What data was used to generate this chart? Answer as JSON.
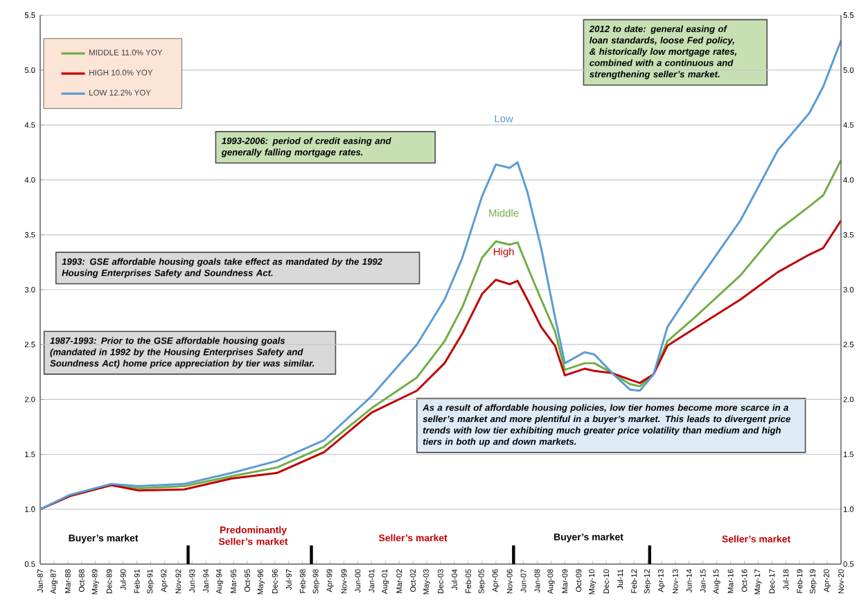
{
  "chart_data": {
    "type": "line",
    "grid": "y",
    "legend": "top left",
    "line_style": "solid",
    "marker": "none",
    "xlim": [
      "1987-01",
      "2020-11"
    ],
    "ylim": [
      0.5,
      5.5
    ],
    "yticks": [
      {
        "value": 0.5,
        "label": "0.5"
      },
      {
        "value": 1,
        "label": "1.0"
      },
      {
        "value": 1.5,
        "label": "1.5"
      },
      {
        "value": 2,
        "label": "2.0"
      },
      {
        "value": 2.5,
        "label": "2.5"
      },
      {
        "value": 3,
        "label": "3.0"
      },
      {
        "value": 3.5,
        "label": "3.5"
      },
      {
        "value": 4,
        "label": "4.0"
      },
      {
        "value": 4.5,
        "label": "4.5"
      },
      {
        "value": 5,
        "label": "5.0"
      },
      {
        "value": 5.5,
        "label": "5.5"
      }
    ],
    "y2lim": [
      0.5,
      5.5
    ],
    "y2ticks": [
      {
        "value": 0.5,
        "label": "0.5"
      },
      {
        "value": 1,
        "label": "1.0"
      },
      {
        "value": 1.5,
        "label": "1.5"
      },
      {
        "value": 2,
        "label": "2.0"
      },
      {
        "value": 2.5,
        "label": "2.5"
      },
      {
        "value": 3,
        "label": "3.0"
      },
      {
        "value": 3.5,
        "label": "3.5"
      },
      {
        "value": 4,
        "label": "4.0"
      },
      {
        "value": 4.5,
        "label": "4.5"
      },
      {
        "value": 5,
        "label": "5.0"
      },
      {
        "value": 5.5,
        "label": "5.5"
      }
    ],
    "xticks": [
      {
        "value": "1987-01",
        "label": "Jan-87"
      },
      {
        "value": "1987-08",
        "label": "Aug-87"
      },
      {
        "value": "1988-03",
        "label": "Mar-88"
      },
      {
        "value": "1988-10",
        "label": "Oct-88"
      },
      {
        "value": "1989-05",
        "label": "May-89"
      },
      {
        "value": "1989-12",
        "label": "Dec-89"
      },
      {
        "value": "1990-07",
        "label": "Jul-90"
      },
      {
        "value": "1991-02",
        "label": "Feb-91"
      },
      {
        "value": "1991-09",
        "label": "Sep-91"
      },
      {
        "value": "1992-04",
        "label": "Apr-92"
      },
      {
        "value": "1992-11",
        "label": "Nov-92"
      },
      {
        "value": "1993-06",
        "label": "Jun-93"
      },
      {
        "value": "1994-01",
        "label": "Jan-94"
      },
      {
        "value": "1994-08",
        "label": "Aug-94"
      },
      {
        "value": "1995-03",
        "label": "Mar-95"
      },
      {
        "value": "1995-10",
        "label": "Oct-95"
      },
      {
        "value": "1996-05",
        "label": "May-96"
      },
      {
        "value": "1996-12",
        "label": "Dec-96"
      },
      {
        "value": "1997-07",
        "label": "Jul-97"
      },
      {
        "value": "1998-02",
        "label": "Feb-98"
      },
      {
        "value": "1998-09",
        "label": "Sep-98"
      },
      {
        "value": "1999-04",
        "label": "Apr-99"
      },
      {
        "value": "1999-11",
        "label": "Nov-99"
      },
      {
        "value": "2000-06",
        "label": "Jun-00"
      },
      {
        "value": "2001-01",
        "label": "Jan-01"
      },
      {
        "value": "2001-08",
        "label": "Aug-01"
      },
      {
        "value": "2002-03",
        "label": "Mar-02"
      },
      {
        "value": "2002-10",
        "label": "Oct-02"
      },
      {
        "value": "2003-05",
        "label": "May-03"
      },
      {
        "value": "2003-12",
        "label": "Dec-03"
      },
      {
        "value": "2004-07",
        "label": "Jul-04"
      },
      {
        "value": "2005-02",
        "label": "Feb-05"
      },
      {
        "value": "2005-09",
        "label": "Sep-05"
      },
      {
        "value": "2006-04",
        "label": "Apr-06"
      },
      {
        "value": "2006-11",
        "label": "Nov-06"
      },
      {
        "value": "2007-06",
        "label": "Jun-07"
      },
      {
        "value": "2008-01",
        "label": "Jan-08"
      },
      {
        "value": "2008-08",
        "label": "Aug-08"
      },
      {
        "value": "2009-03",
        "label": "Mar-09"
      },
      {
        "value": "2009-10",
        "label": "Oct-09"
      },
      {
        "value": "2010-05",
        "label": "May-10"
      },
      {
        "value": "2010-12",
        "label": "Dec-10"
      },
      {
        "value": "2011-07",
        "label": "Jul-11"
      },
      {
        "value": "2012-02",
        "label": "Feb-12"
      },
      {
        "value": "2012-09",
        "label": "Sep-12"
      },
      {
        "value": "2013-04",
        "label": "Apr-13"
      },
      {
        "value": "2013-11",
        "label": "Nov-13"
      },
      {
        "value": "2014-06",
        "label": "Jun-14"
      },
      {
        "value": "2015-01",
        "label": "Jan-15"
      },
      {
        "value": "2015-08",
        "label": "Aug-15"
      },
      {
        "value": "2016-03",
        "label": "Mar-16"
      },
      {
        "value": "2016-10",
        "label": "Oct-16"
      },
      {
        "value": "2017-05",
        "label": "May-17"
      },
      {
        "value": "2017-12",
        "label": "Dec-17"
      },
      {
        "value": "2018-07",
        "label": "Jul-18"
      },
      {
        "value": "2019-02",
        "label": "Feb-19"
      },
      {
        "value": "2019-09",
        "label": "Sep-19"
      },
      {
        "value": "2020-04",
        "label": "Apr-20"
      },
      {
        "value": "2020-11",
        "label": "Nov-20"
      }
    ],
    "x": [
      "1987-01",
      "1988-04",
      "1990-01",
      "1991-03",
      "1993-02",
      "1995-02",
      "1997-01",
      "1999-01",
      "2001-01",
      "2002-12",
      "2004-02",
      "2004-11",
      "2005-09",
      "2006-04",
      "2006-11",
      "2007-03",
      "2007-08",
      "2008-03",
      "2008-10",
      "2009-03",
      "2010-01",
      "2010-06",
      "2011-03",
      "2011-12",
      "2012-05",
      "2012-12",
      "2013-07",
      "2014-09",
      "2016-08",
      "2018-03",
      "2019-07",
      "2020-02",
      "2020-11"
    ],
    "series": [
      {
        "name": "MIDDLE 11.0% YOY",
        "color": "#70ad47",
        "values": [
          1.0,
          1.12,
          1.22,
          1.19,
          1.21,
          1.3,
          1.38,
          1.57,
          1.92,
          2.2,
          2.53,
          2.84,
          3.29,
          3.44,
          3.41,
          3.43,
          3.21,
          2.91,
          2.62,
          2.27,
          2.33,
          2.33,
          2.24,
          2.14,
          2.12,
          2.23,
          2.53,
          2.75,
          3.13,
          3.54,
          3.76,
          3.86,
          4.18
        ]
      },
      {
        "name": "HIGH 10.0% YOY",
        "color": "#c00000",
        "values": [
          1.0,
          1.12,
          1.22,
          1.17,
          1.18,
          1.28,
          1.33,
          1.52,
          1.88,
          2.08,
          2.33,
          2.6,
          2.96,
          3.09,
          3.05,
          3.08,
          2.91,
          2.66,
          2.49,
          2.22,
          2.28,
          2.26,
          2.24,
          2.18,
          2.15,
          2.23,
          2.49,
          2.65,
          2.91,
          3.16,
          3.32,
          3.38,
          3.63
        ]
      },
      {
        "name": "LOW 12.2% YOY",
        "color": "#5b9bd5",
        "values": [
          1.0,
          1.13,
          1.23,
          1.21,
          1.23,
          1.33,
          1.44,
          1.63,
          2.03,
          2.5,
          2.91,
          3.29,
          3.85,
          4.14,
          4.11,
          4.16,
          3.89,
          3.38,
          2.75,
          2.33,
          2.43,
          2.41,
          2.24,
          2.09,
          2.08,
          2.23,
          2.66,
          3.04,
          3.63,
          4.27,
          4.61,
          4.85,
          5.27
        ]
      }
    ],
    "annotations": [
      "2012 to date: general easing of loan standards, loose Fed policy, & historically low mortgage rates, combined  with a continuous and strengthening seller’s market.",
      "1993-2006: period of credit easing and generally falling mortgage rates.",
      "1993: GSE affordable housing goals take effect as mandated by the 1992 Housing  Enterprises Safety and Soundness Act.",
      "1987-1993: Prior to the GSE affordable housing goals (mandated in 1992 by the Housing  Enterprises Safety and Soundness Act) home price appreciation by tier was similar.",
      "As a result of affordable housing policies, low tier homes become more scarce in a seller’s market and  more plentiful in a buyer’s market. This leads to divergent price trends with low tier exhibiting much greater price volatility than medium and high tiers in both up and down markets.",
      "Buyer’s market",
      "Predominantly Seller’s market",
      "Seller’s market",
      "Buyer’s market",
      "Seller’s market",
      "Low",
      "Middle",
      "High"
    ]
  }
}
